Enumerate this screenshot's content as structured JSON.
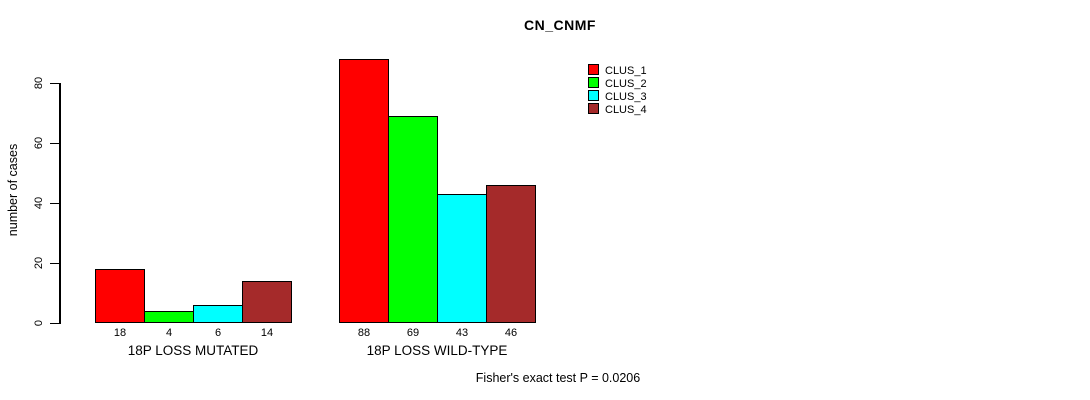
{
  "chart_data": {
    "type": "bar",
    "title": "CN_CNMF",
    "xlabel": "",
    "ylabel": "number of cases",
    "categories": [
      "18P LOSS MUTATED",
      "18P LOSS WILD-TYPE"
    ],
    "series": [
      {
        "name": "CLUS_1",
        "color": "#FF0000",
        "values": [
          18,
          88
        ]
      },
      {
        "name": "CLUS_2",
        "color": "#00FF00",
        "values": [
          4,
          69
        ]
      },
      {
        "name": "CLUS_3",
        "color": "#00FFFF",
        "values": [
          6,
          43
        ]
      },
      {
        "name": "CLUS_4",
        "color": "#A52A2A",
        "values": [
          14,
          46
        ]
      }
    ],
    "yticks": [
      0,
      20,
      40,
      60,
      80
    ],
    "ylim": [
      0,
      88
    ],
    "grid": false,
    "bar_value_labels": true,
    "legend_position": "top-right",
    "annotation": "Fisher's exact test P = 0.0206"
  }
}
